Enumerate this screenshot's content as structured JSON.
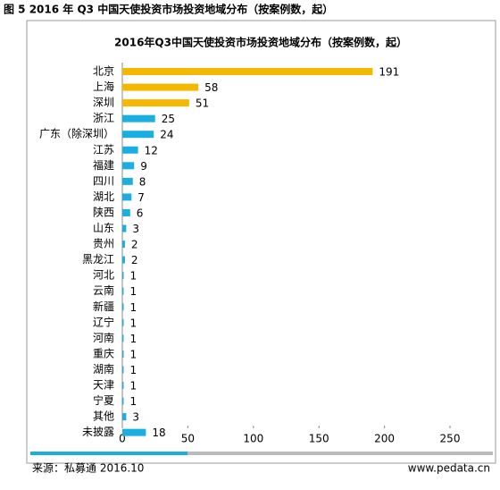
{
  "figure_caption": "图 5 2016 年 Q3 中国天使投资市场投资地域分布（按案例数，起）",
  "source": "来源：私募通 2016.10",
  "website": "www.pedata.cn",
  "chart_data": {
    "type": "bar",
    "orientation": "horizontal",
    "title": "2016年Q3中国天使投资市场投资地域分布（按案例数，起）",
    "categories": [
      "北京",
      "上海",
      "深圳",
      "浙江",
      "广东（除深圳）",
      "江苏",
      "福建",
      "四川",
      "湖北",
      "陕西",
      "山东",
      "贵州",
      "黑龙江",
      "河北",
      "云南",
      "新疆",
      "辽宁",
      "河南",
      "重庆",
      "湖南",
      "天津",
      "宁夏",
      "其他",
      "未披露"
    ],
    "values": [
      191,
      58,
      51,
      25,
      24,
      12,
      9,
      8,
      7,
      6,
      3,
      2,
      2,
      1,
      1,
      1,
      1,
      1,
      1,
      1,
      1,
      1,
      3,
      18
    ],
    "colors": [
      "#f5b800",
      "#f5b800",
      "#f5b800",
      "#1aafe0",
      "#1aafe0",
      "#1aafe0",
      "#1aafe0",
      "#1aafe0",
      "#1aafe0",
      "#1aafe0",
      "#1aafe0",
      "#1aafe0",
      "#1aafe0",
      "#1aafe0",
      "#1aafe0",
      "#1aafe0",
      "#1aafe0",
      "#1aafe0",
      "#1aafe0",
      "#1aafe0",
      "#1aafe0",
      "#1aafe0",
      "#1aafe0",
      "#1aafe0"
    ],
    "xlim": [
      0,
      250
    ],
    "xticks": [
      0,
      50,
      100,
      150,
      200,
      250
    ],
    "grid": false
  }
}
